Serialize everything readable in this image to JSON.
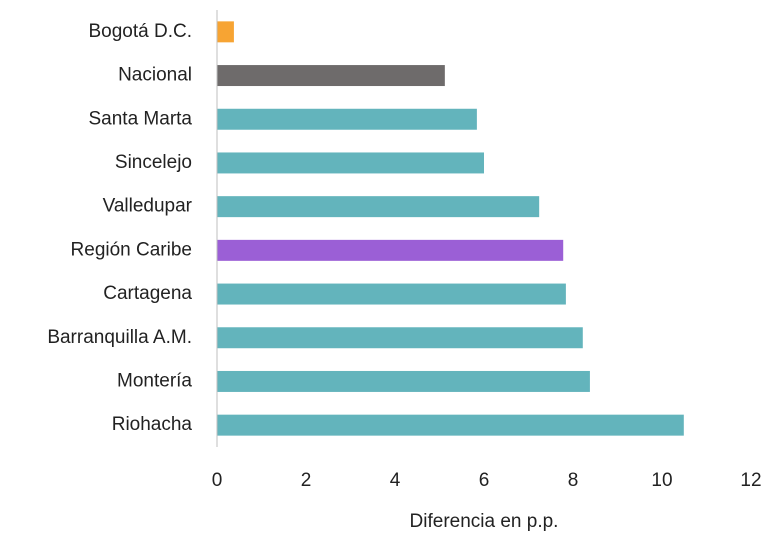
{
  "chart_data": {
    "type": "bar",
    "orientation": "horizontal",
    "x_label": "Diferencia en p.p.",
    "categories": [
      "Bogotá D.C.",
      "Nacional",
      "Santa Marta",
      "Sincelejo",
      "Valledupar",
      "Región Caribe",
      "Cartagena",
      "Barranquilla A.M.",
      "Montería",
      "Riohacha"
    ],
    "values": [
      0.38,
      5.12,
      5.84,
      6.0,
      7.24,
      7.78,
      7.84,
      8.22,
      8.38,
      10.49
    ],
    "colors": [
      "#f7a433",
      "#6e6b6b",
      "#63b4bc",
      "#63b4bc",
      "#63b4bc",
      "#9b5fd6",
      "#63b4bc",
      "#63b4bc",
      "#63b4bc",
      "#63b4bc"
    ],
    "xlim": [
      0,
      12
    ],
    "xticks": [
      0,
      2,
      4,
      6,
      8,
      10,
      12
    ],
    "grid": false
  }
}
